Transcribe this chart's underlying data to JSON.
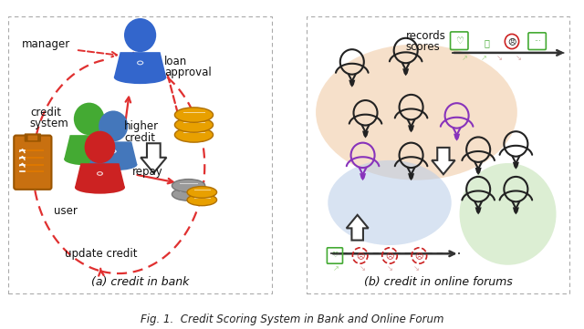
{
  "title": "Fig. 1.  Credit Scoring System in Bank and Online Forum",
  "panel_a_title": "(a) credit in bank",
  "panel_b_title": "(b) credit in online forums",
  "bg_color": "#ffffff",
  "colors": {
    "red_arrow": "#e03030",
    "blue_person": "#3366cc",
    "green_person": "#44aa33",
    "red_person": "#cc2222",
    "blue2_person": "#4477bb",
    "purple_person": "#8833bb",
    "black_person": "#222222",
    "gold_coin": "#e8a000",
    "gray_coin": "#999999",
    "clipboard_body": "#c87010",
    "clipboard_dark": "#9a5500",
    "salmon_blob": "#f0c8a0",
    "blue_blob": "#b8cce8",
    "green_blob": "#c0e0b0",
    "text": "#111111",
    "border": "#aaaaaa"
  }
}
